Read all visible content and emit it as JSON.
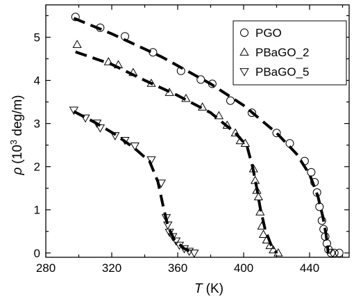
{
  "chart_data": {
    "type": "scatter",
    "title": "",
    "xlabel": {
      "symbol": "T",
      "unit": "(K)"
    },
    "ylabel": {
      "symbol": "ρ",
      "unit_prefix": "(10",
      "exponent": "3",
      "unit_suffix": " deg/m)"
    },
    "xlim": [
      280,
      464
    ],
    "ylim": [
      -0.1,
      5.75
    ],
    "xticks": [
      280,
      320,
      360,
      400,
      440
    ],
    "yticks": [
      0,
      1,
      2,
      3,
      4,
      5
    ],
    "legend_position": "top-right",
    "series": [
      {
        "name": "PGO",
        "marker": "circle",
        "points": [
          [
            298,
            5.47
          ],
          [
            313,
            5.22
          ],
          [
            328,
            5.02
          ],
          [
            345,
            4.65
          ],
          [
            362,
            4.22
          ],
          [
            374,
            4.02
          ],
          [
            381,
            3.92
          ],
          [
            392,
            3.53
          ],
          [
            405,
            3.25
          ],
          [
            420,
            2.78
          ],
          [
            428,
            2.54
          ],
          [
            437,
            2.13
          ],
          [
            441,
            1.87
          ],
          [
            443,
            1.64
          ],
          [
            444.5,
            1.4
          ],
          [
            446,
            1.07
          ],
          [
            447.5,
            0.75
          ],
          [
            448.5,
            0.55
          ],
          [
            449.5,
            0.38
          ],
          [
            450.5,
            0.22
          ],
          [
            451.5,
            0.08
          ],
          [
            453,
            0.0
          ],
          [
            455,
            0.0
          ],
          [
            458,
            0.0
          ]
        ],
        "fit": [
          [
            297,
            5.44
          ],
          [
            320,
            5.08
          ],
          [
            350,
            4.55
          ],
          [
            380,
            3.92
          ],
          [
            400,
            3.42
          ],
          [
            420,
            2.78
          ],
          [
            432,
            2.3
          ],
          [
            440,
            1.82
          ],
          [
            445,
            1.32
          ],
          [
            448,
            0.85
          ],
          [
            450,
            0.42
          ],
          [
            451.3,
            0.0
          ]
        ]
      },
      {
        "name": "PBaGO_2",
        "marker": "triangle-up",
        "points": [
          [
            299,
            4.83
          ],
          [
            318,
            4.43
          ],
          [
            324,
            4.36
          ],
          [
            333,
            4.18
          ],
          [
            344,
            3.93
          ],
          [
            355,
            3.72
          ],
          [
            365,
            3.58
          ],
          [
            375,
            3.38
          ],
          [
            385,
            3.18
          ],
          [
            390,
            2.96
          ],
          [
            395,
            2.78
          ],
          [
            398,
            2.6
          ],
          [
            401,
            2.54
          ],
          [
            406,
            1.95
          ],
          [
            407,
            1.68
          ],
          [
            408,
            1.45
          ],
          [
            409,
            1.3
          ],
          [
            410,
            0.95
          ],
          [
            411,
            0.62
          ],
          [
            412,
            0.43
          ],
          [
            414,
            0.3
          ],
          [
            416,
            0.17
          ],
          [
            418,
            0.07
          ],
          [
            421,
            0.0
          ]
        ],
        "fit": [
          [
            298,
            4.66
          ],
          [
            320,
            4.37
          ],
          [
            340,
            4.0
          ],
          [
            360,
            3.65
          ],
          [
            380,
            3.25
          ],
          [
            395,
            2.78
          ],
          [
            402,
            2.48
          ],
          [
            405.5,
            1.98
          ],
          [
            408,
            1.5
          ],
          [
            410,
            1.05
          ],
          [
            413,
            0.55
          ],
          [
            416.5,
            0.2
          ],
          [
            420,
            0.0
          ]
        ]
      },
      {
        "name": "PBaGO_5",
        "marker": "triangle-down",
        "points": [
          [
            297,
            3.31
          ],
          [
            304,
            3.13
          ],
          [
            311,
            3.01
          ],
          [
            313,
            2.9
          ],
          [
            322,
            2.72
          ],
          [
            328,
            2.61
          ],
          [
            334,
            2.48
          ],
          [
            344,
            2.16
          ],
          [
            350,
            1.62
          ],
          [
            353,
            0.82
          ],
          [
            354,
            0.65
          ],
          [
            355,
            0.48
          ],
          [
            357,
            0.38
          ],
          [
            359,
            0.28
          ],
          [
            361,
            0.18
          ],
          [
            364,
            0.1
          ],
          [
            367,
            0.04
          ],
          [
            370,
            0.0
          ]
        ],
        "fit": [
          [
            297,
            3.28
          ],
          [
            310,
            3.02
          ],
          [
            322,
            2.75
          ],
          [
            334,
            2.42
          ],
          [
            343,
            2.12
          ],
          [
            348,
            1.65
          ],
          [
            351,
            1.12
          ],
          [
            354,
            0.62
          ],
          [
            358,
            0.3
          ],
          [
            364,
            0.1
          ],
          [
            370,
            0.0
          ]
        ]
      }
    ]
  }
}
